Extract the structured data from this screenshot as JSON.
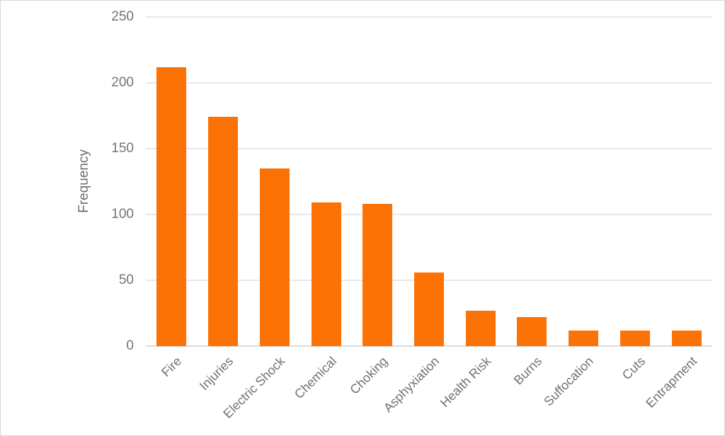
{
  "figure": {
    "background": "#ffffff",
    "border_color": "#d8d8d8"
  },
  "chart_data": {
    "type": "bar",
    "title": "",
    "xlabel": "",
    "ylabel": "Frequency",
    "categories": [
      "Fire",
      "Injuries",
      "Electric Shock",
      "Chemical",
      "Choking",
      "Asphyxiation",
      "Health Risk",
      "Burns",
      "Suffocation",
      "Cuts",
      "Entrapment"
    ],
    "values": [
      212,
      174,
      135,
      109,
      108,
      56,
      27,
      22,
      12,
      12,
      12
    ],
    "ylim": [
      0,
      250
    ],
    "yticks": [
      0,
      50,
      100,
      150,
      200,
      250
    ],
    "grid": true,
    "legend_position": "none",
    "x_tick_rotation": -45,
    "bar_color": "#fd7205",
    "gridline_color": "#e8e7eb",
    "baseline_color": "#dcdbdf",
    "y_tick_label_color": "#757575",
    "x_tick_label_color": "#6e7276",
    "axis_title_color": "#6e6e6e"
  }
}
